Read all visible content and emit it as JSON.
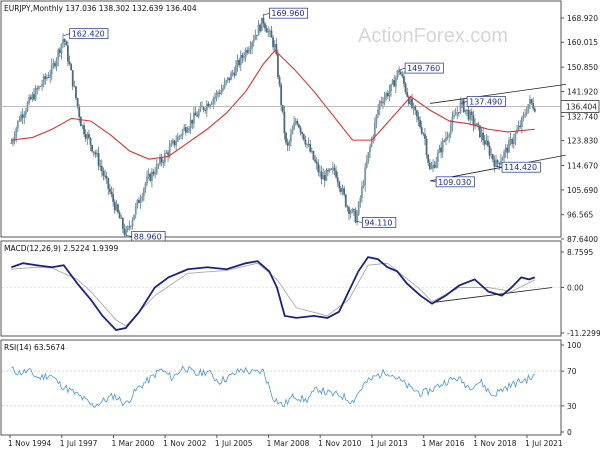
{
  "chart_data": [
    {
      "type": "candlestick",
      "header": "EURJPY,Monthly  137.036 138.302 132.639 136.404",
      "watermark": "ActionForex.com",
      "y_ticks": [
        "168.920",
        "160.015",
        "150.850",
        "141.920",
        "132.740",
        "123.830",
        "114.670",
        "105.690",
        "96.565",
        "87.6400"
      ],
      "current_price": "136.404",
      "series": [
        {
          "name": "EURJPY monthly price",
          "color": "#5b7a8c",
          "x": [
            1994.9,
            1995.3,
            1996.0,
            1997.0,
            1997.6,
            1998.5,
            1999.3,
            2000.8,
            2001.8,
            2002.8,
            2003.8,
            2004.8,
            2005.8,
            2006.6,
            2007.4,
            2007.9,
            2008.5,
            2009.1,
            2009.6,
            2010.3,
            2010.9,
            2011.6,
            2012.2,
            2012.7,
            2013.3,
            2013.9,
            2014.5,
            2014.9,
            2015.5,
            2016.2,
            2016.5,
            2017.0,
            2017.6,
            2018.1,
            2018.8,
            2019.2,
            2019.9,
            2020.4,
            2020.9,
            2021.2,
            2021.6,
            2021.9
          ],
          "y": [
            123,
            132,
            140,
            150,
            162,
            130,
            118,
            89,
            108,
            118,
            128,
            136,
            143,
            152,
            162,
            168,
            158,
            120,
            132,
            120,
            110,
            113,
            100,
            95,
            118,
            138,
            143,
            150,
            137,
            126,
            112,
            120,
            130,
            137.5,
            130,
            125,
            115,
            120,
            126,
            130,
            138,
            136.4
          ]
        },
        {
          "name": "moving average",
          "color": "#e03030",
          "x": [
            1994.9,
            1996.0,
            1997.0,
            1998.0,
            1999.0,
            2000.0,
            2001.0,
            2002.0,
            2003.0,
            2004.0,
            2005.0,
            2006.0,
            2007.0,
            2007.9,
            2008.5,
            2009.5,
            2010.5,
            2011.5,
            2012.5,
            2013.5,
            2014.5,
            2015.5,
            2016.5,
            2017.5,
            2018.5,
            2019.5,
            2020.5,
            2021.9
          ],
          "y": [
            124,
            125,
            128,
            132,
            131,
            126,
            120,
            117,
            118,
            123,
            128,
            134,
            142,
            152,
            157,
            150,
            142,
            133,
            124,
            124,
            132,
            140,
            135,
            131,
            130,
            128,
            127,
            128
          ]
        }
      ],
      "annotations": [
        {
          "label": "162.420",
          "x": 1997.6,
          "y": 162.42
        },
        {
          "label": "169.960",
          "x": 2007.9,
          "y": 169.96
        },
        {
          "label": "88.960",
          "x": 2000.8,
          "y": 88.96
        },
        {
          "label": "94.110",
          "x": 2012.7,
          "y": 94.11
        },
        {
          "label": "149.760",
          "x": 2014.9,
          "y": 149.76
        },
        {
          "label": "137.490",
          "x": 2018.1,
          "y": 137.49
        },
        {
          "label": "109.030",
          "x": 2016.5,
          "y": 109.03
        },
        {
          "label": "114.420",
          "x": 2019.9,
          "y": 114.42
        }
      ],
      "trend_lines": [
        {
          "x": [
            2016.5,
            2023.5
          ],
          "y": [
            137.5,
            144.5
          ]
        },
        {
          "x": [
            2016.5,
            2023.5
          ],
          "y": [
            109.0,
            118.5
          ]
        }
      ]
    },
    {
      "type": "line",
      "header": "MACD(12,26,9) 2.5224 1.9399",
      "y_ticks": [
        "8.7595",
        "0.00",
        "-11.2299"
      ],
      "ylim": [
        -11.2299,
        8.7595
      ],
      "series": [
        {
          "name": "MACD",
          "color": "#1a2280",
          "x": [
            1994.9,
            1995.5,
            1996.2,
            1997.0,
            1997.6,
            1998.3,
            1999.0,
            1999.6,
            2000.3,
            2000.8,
            2001.5,
            2002.3,
            2003.0,
            2004.0,
            2005.0,
            2006.0,
            2007.0,
            2007.6,
            2008.2,
            2008.6,
            2009.0,
            2009.6,
            2010.5,
            2011.2,
            2011.8,
            2012.3,
            2012.8,
            2013.3,
            2013.8,
            2014.3,
            2014.8,
            2015.3,
            2016.0,
            2016.6,
            2017.3,
            2018.0,
            2018.8,
            2019.5,
            2020.2,
            2020.7,
            2021.2,
            2021.6,
            2021.9
          ],
          "y": [
            5.0,
            6.0,
            5.5,
            5.0,
            5.5,
            1.0,
            -3.0,
            -7.0,
            -10.5,
            -10.0,
            -6.0,
            0.0,
            2.5,
            4.5,
            5.0,
            4.5,
            6.0,
            6.5,
            4.0,
            0.0,
            -7.0,
            -7.5,
            -7.0,
            -7.5,
            -6.0,
            -1.0,
            4.0,
            7.5,
            7.0,
            5.0,
            4.0,
            1.0,
            -2.0,
            -4.0,
            -2.0,
            0.5,
            2.0,
            -1.0,
            -2.0,
            0.0,
            2.5,
            2.0,
            2.5
          ]
        },
        {
          "name": "Signal",
          "color": "#aaaaaa",
          "x": [
            1994.9,
            1996.2,
            1997.0,
            1998.3,
            1999.0,
            2000.3,
            2000.8,
            2002.3,
            2004.0,
            2006.0,
            2007.6,
            2008.6,
            2009.6,
            2011.2,
            2012.3,
            2013.3,
            2014.3,
            2016.0,
            2016.6,
            2018.0,
            2019.5,
            2020.7,
            2021.9
          ],
          "y": [
            4.5,
            5.0,
            4.8,
            2.0,
            -1.0,
            -8.0,
            -9.5,
            -2.0,
            3.5,
            4.2,
            6.0,
            2.0,
            -5.0,
            -7.0,
            -3.0,
            5.5,
            6.0,
            -0.5,
            -3.5,
            0.0,
            0.0,
            -1.0,
            1.9
          ]
        }
      ],
      "trend_lines": [
        {
          "x": [
            2016.8,
            2022.8
          ],
          "y": [
            -3.6,
            0.0
          ]
        }
      ]
    },
    {
      "type": "line",
      "header": "RSI(14) 63.5674",
      "y_ticks": [
        "100",
        "70",
        "30",
        "0"
      ],
      "ylim": [
        0,
        100
      ],
      "series": [
        {
          "name": "RSI",
          "color": "#4a96d8",
          "x": [
            1994.9,
            1995.3,
            1995.8,
            1996.3,
            1996.9,
            1997.4,
            1997.9,
            1998.5,
            1999.1,
            1999.6,
            2000.2,
            2000.8,
            2001.4,
            2002.0,
            2002.6,
            2003.2,
            2003.8,
            2004.4,
            2005.0,
            2005.6,
            2006.2,
            2006.8,
            2007.4,
            2007.9,
            2008.4,
            2008.9,
            2009.5,
            2010.1,
            2010.7,
            2011.3,
            2011.9,
            2012.5,
            2013.1,
            2013.7,
            2014.3,
            2014.9,
            2015.5,
            2016.1,
            2016.7,
            2017.3,
            2017.9,
            2018.5,
            2019.1,
            2019.7,
            2020.3,
            2020.9,
            2021.4,
            2021.9
          ],
          "y": [
            72,
            68,
            70,
            62,
            66,
            55,
            48,
            40,
            30,
            35,
            42,
            32,
            50,
            60,
            72,
            62,
            75,
            66,
            70,
            58,
            64,
            72,
            68,
            70,
            40,
            30,
            42,
            36,
            50,
            44,
            42,
            35,
            55,
            64,
            70,
            60,
            50,
            44,
            50,
            58,
            62,
            52,
            58,
            42,
            50,
            56,
            60,
            63.5674
          ]
        }
      ]
    }
  ],
  "x_axis": {
    "tick_labels": [
      "1 Nov 1994",
      "1 Jul 1997",
      "1 Mar 2000",
      "1 Nov 2002",
      "1 Jul 2005",
      "1 Mar 2008",
      "1 Nov 2010",
      "1 Jul 2013",
      "1 Mar 2016",
      "1 Nov 2018",
      "1 Jul 2021"
    ],
    "tick_values": [
      1994.83,
      1997.5,
      2000.17,
      2002.83,
      2005.5,
      2008.17,
      2010.83,
      2013.5,
      2016.17,
      2018.83,
      2021.5
    ]
  }
}
